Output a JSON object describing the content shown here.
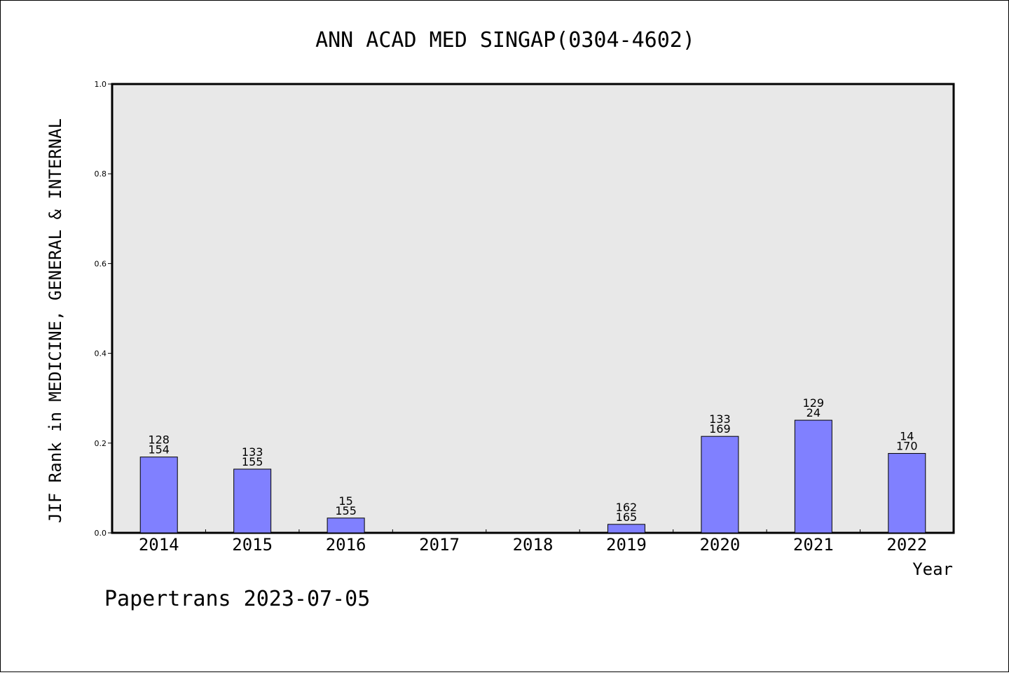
{
  "chart_data": {
    "type": "bar",
    "title": "ANN ACAD MED SINGAP(0304-4602)",
    "xlabel": "Year",
    "ylabel": "JIF Rank in MEDICINE, GENERAL & INTERNAL",
    "ylim": [
      0,
      1.0
    ],
    "yticks": [
      "0.0",
      "0.2",
      "0.4",
      "0.6",
      "0.8",
      "1.0"
    ],
    "categories": [
      "2014",
      "2015",
      "2016",
      "2017",
      "2018",
      "2019",
      "2020",
      "2021",
      "2022"
    ],
    "values": [
      0.169,
      0.142,
      0.033,
      null,
      null,
      0.019,
      0.215,
      0.251,
      0.177
    ],
    "labels_top": [
      "128",
      "133",
      "15",
      "",
      "",
      "162",
      "133",
      "129",
      "14"
    ],
    "labels_bottom": [
      "154",
      "155",
      "155",
      "",
      "",
      "165",
      "169",
      "24",
      "170"
    ],
    "colors": {
      "bar": "#8080ff",
      "plot_bg": "#e8e8e8"
    },
    "grid": false,
    "legend": "none"
  },
  "footer": "Papertrans 2023-07-05"
}
